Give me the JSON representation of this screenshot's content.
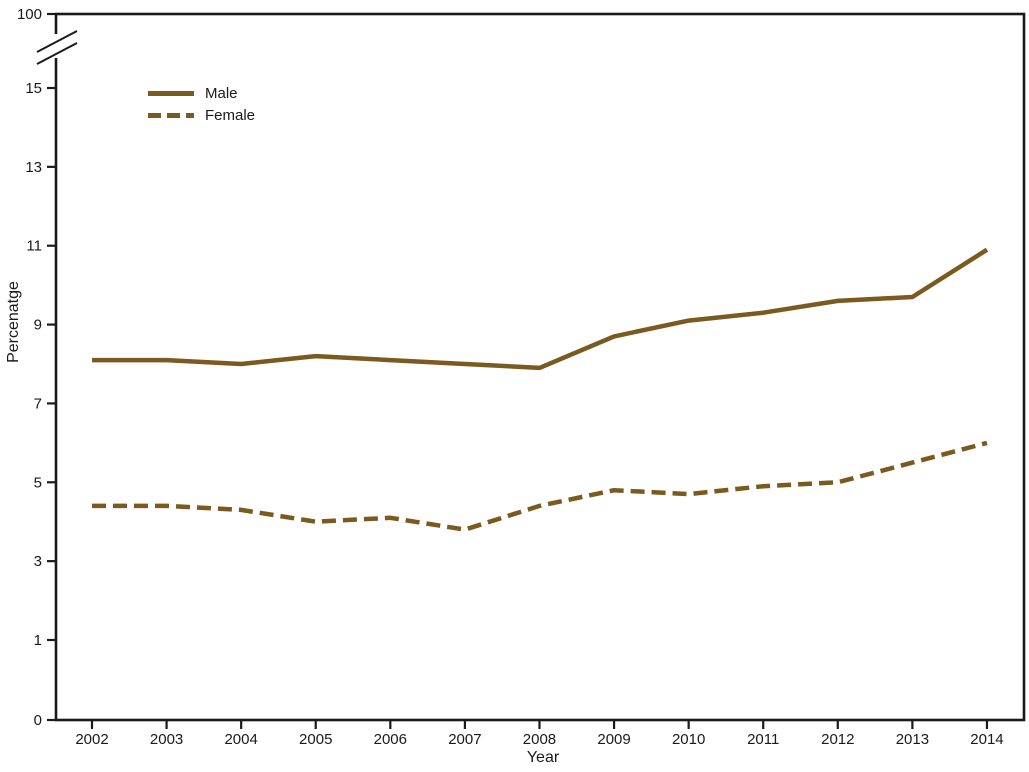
{
  "chart_data": {
    "type": "line",
    "title": "",
    "xlabel": "Year",
    "ylabel": "Percenatge",
    "x": [
      2002,
      2003,
      2004,
      2005,
      2006,
      2007,
      2008,
      2009,
      2010,
      2011,
      2012,
      2013,
      2014
    ],
    "series": [
      {
        "name": "Male",
        "style": "solid",
        "values": [
          8.1,
          8.1,
          8.0,
          8.2,
          8.1,
          8.0,
          7.9,
          8.7,
          9.1,
          9.3,
          9.6,
          9.7,
          10.9
        ]
      },
      {
        "name": "Female",
        "style": "dashed",
        "values": [
          4.4,
          4.4,
          4.3,
          4.0,
          4.1,
          3.8,
          4.4,
          4.8,
          4.7,
          4.9,
          5.0,
          5.5,
          6.0
        ]
      }
    ],
    "y_ticks": [
      0,
      1,
      3,
      5,
      7,
      9,
      11,
      13,
      15,
      100
    ],
    "y_axis_break_between": [
      15,
      100
    ],
    "grid": false,
    "legend_position": "upper-left-inside",
    "line_color": "#7A5A1E",
    "axis_color": "#1a1a1a",
    "background_color": "#ffffff"
  }
}
